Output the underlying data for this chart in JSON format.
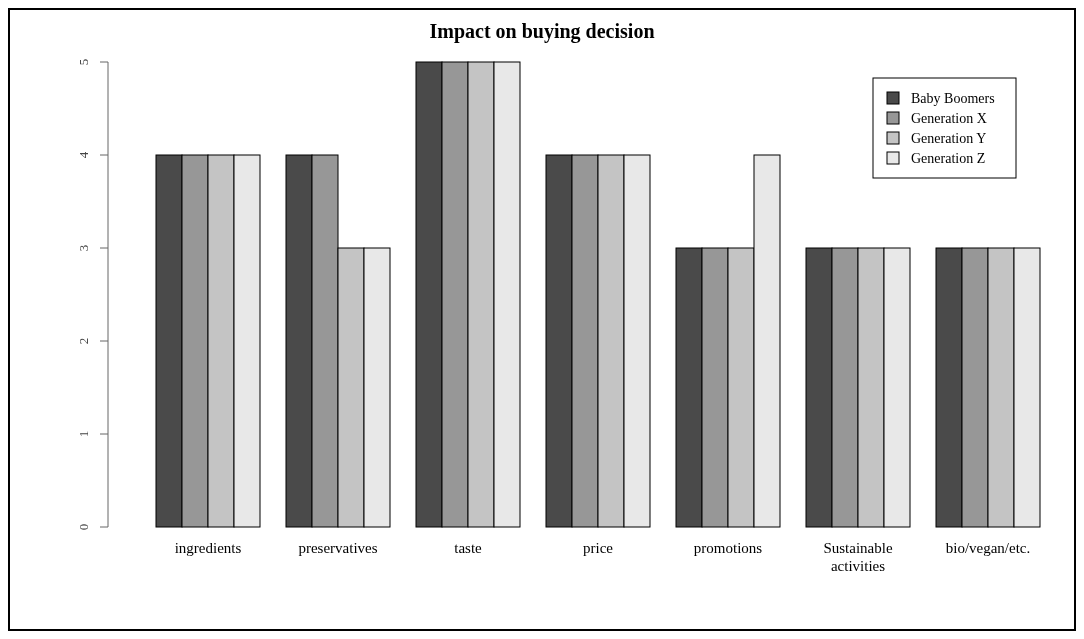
{
  "chart_data": {
    "type": "bar",
    "title": "Impact on buying decision",
    "categories": [
      "ingredients",
      "preservatives",
      "taste",
      "price",
      "promotions",
      "Sustainable activities",
      "bio/vegan/etc."
    ],
    "series": [
      {
        "name": "Baby Boomers",
        "color": "#4a4a4a",
        "values": [
          4,
          4,
          5,
          4,
          3,
          3,
          3
        ]
      },
      {
        "name": "Generation X",
        "color": "#979797",
        "values": [
          4,
          4,
          5,
          4,
          3,
          3,
          3
        ]
      },
      {
        "name": "Generation Y",
        "color": "#c4c4c4",
        "values": [
          4,
          3,
          5,
          4,
          3,
          3,
          3
        ]
      },
      {
        "name": "Generation Z",
        "color": "#e8e8e8",
        "values": [
          4,
          3,
          5,
          4,
          4,
          3,
          3
        ]
      }
    ],
    "ylim": [
      0,
      5
    ],
    "yticks": [
      0,
      1,
      2,
      3,
      4,
      5
    ],
    "grid": false,
    "legend": "top right"
  }
}
